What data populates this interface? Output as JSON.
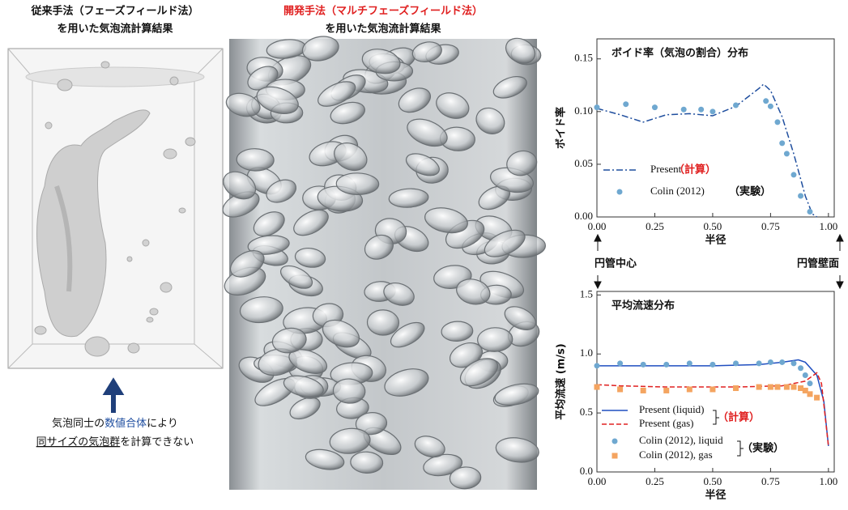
{
  "panels": {
    "left": {
      "title": [
        "従来手法（フェーズフィールド法）",
        "を用いた気泡流計算結果"
      ],
      "caption_line1": [
        "気泡同士の",
        "数値合体",
        "により"
      ],
      "caption_line2": [
        "同サイズの気泡群",
        "を計算できない"
      ]
    },
    "middle": {
      "title": [
        "開発手法（マルチフェーズフィールド法）",
        "を用いた気泡流計算結果"
      ]
    },
    "right": {
      "center_label": "円管中心",
      "wall_label": "円管壁面"
    }
  },
  "chart_data": [
    {
      "type": "line",
      "title": "ボイド率（気泡の割合）分布",
      "xlabel": "半径",
      "ylabel": "ボイド率",
      "xlim": [
        0,
        1.025
      ],
      "ylim": [
        0,
        0.169
      ],
      "xticks": [
        {
          "value": 0,
          "label": "0.00"
        },
        {
          "value": 0.25,
          "label": "0.25"
        },
        {
          "value": 0.5,
          "label": "0.50"
        },
        {
          "value": 0.75,
          "label": "0.75"
        },
        {
          "value": 1,
          "label": "1.00"
        }
      ],
      "yticks": [
        {
          "value": 0,
          "label": "0.00"
        },
        {
          "value": 0.05,
          "label": "0.05"
        },
        {
          "value": 0.1,
          "label": "0.10"
        },
        {
          "value": 0.15,
          "label": "0.15"
        }
      ],
      "series": [
        {
          "name": "Present",
          "color": "#1f4e9e",
          "linestyle": "dashdot",
          "marker": "none",
          "x": [
            0,
            0.1,
            0.2,
            0.3,
            0.4,
            0.5,
            0.6,
            0.7,
            0.72,
            0.75,
            0.8,
            0.85,
            0.9,
            0.93,
            0.95
          ],
          "values": [
            0.103,
            0.097,
            0.09,
            0.097,
            0.098,
            0.096,
            0.105,
            0.122,
            0.126,
            0.12,
            0.095,
            0.06,
            0.02,
            0.003,
            0
          ]
        },
        {
          "name": "Colin (2012)",
          "color": "#6fa8d0",
          "linestyle": "none",
          "marker": "circle",
          "x": [
            0,
            0.125,
            0.25,
            0.375,
            0.45,
            0.5,
            0.6,
            0.73,
            0.75,
            0.78,
            0.8,
            0.82,
            0.85,
            0.88,
            0.92
          ],
          "values": [
            0.104,
            0.107,
            0.104,
            0.102,
            0.102,
            0.1,
            0.106,
            0.11,
            0.105,
            0.09,
            0.07,
            0.06,
            0.04,
            0.02,
            0.005
          ]
        }
      ],
      "annotations": [
        {
          "text": "（計算）",
          "color": "#e02020"
        },
        {
          "text": "（実験）",
          "color": "#111111"
        }
      ]
    },
    {
      "type": "line",
      "title": "平均流速分布",
      "xlabel": "半径",
      "ylabel": "平均流速 (m/s)",
      "xlim": [
        0,
        1.025
      ],
      "ylim": [
        0,
        1.53
      ],
      "xticks": [
        {
          "value": 0,
          "label": "0.00"
        },
        {
          "value": 0.25,
          "label": "0.25"
        },
        {
          "value": 0.5,
          "label": "0.50"
        },
        {
          "value": 0.75,
          "label": "0.75"
        },
        {
          "value": 1,
          "label": "1.00"
        }
      ],
      "yticks": [
        {
          "value": 0,
          "label": "0.0"
        },
        {
          "value": 0.5,
          "label": "0.5"
        },
        {
          "value": 1,
          "label": "1.0"
        },
        {
          "value": 1.5,
          "label": "1.5"
        }
      ],
      "series": [
        {
          "name": "Present (liquid)",
          "color": "#1f4ec0",
          "linestyle": "solid",
          "marker": "none",
          "x": [
            0,
            0.2,
            0.5,
            0.7,
            0.8,
            0.87,
            0.9,
            0.95,
            0.98,
            1.0
          ],
          "values": [
            0.9,
            0.9,
            0.9,
            0.91,
            0.93,
            0.95,
            0.93,
            0.82,
            0.6,
            0.22
          ]
        },
        {
          "name": "Present (gas)",
          "color": "#e02020",
          "linestyle": "dashed",
          "marker": "none",
          "x": [
            0,
            0.1,
            0.3,
            0.6,
            0.8,
            0.9,
            0.95,
            0.97,
            1.0
          ],
          "values": [
            0.74,
            0.73,
            0.72,
            0.72,
            0.73,
            0.77,
            0.84,
            0.75,
            0.22
          ]
        },
        {
          "name": "Colin (2012), liquid",
          "color": "#6fa8d0",
          "linestyle": "none",
          "marker": "circle",
          "x": [
            0,
            0.1,
            0.2,
            0.3,
            0.4,
            0.5,
            0.6,
            0.7,
            0.75,
            0.8,
            0.85,
            0.88,
            0.9,
            0.92
          ],
          "values": [
            0.9,
            0.92,
            0.91,
            0.91,
            0.92,
            0.91,
            0.92,
            0.92,
            0.93,
            0.93,
            0.92,
            0.88,
            0.82,
            0.75
          ]
        },
        {
          "name": "Colin (2012), gas",
          "color": "#f4a460",
          "linestyle": "none",
          "marker": "square",
          "x": [
            0,
            0.1,
            0.2,
            0.3,
            0.4,
            0.5,
            0.6,
            0.7,
            0.75,
            0.78,
            0.82,
            0.85,
            0.88,
            0.9,
            0.92,
            0.95
          ],
          "values": [
            0.72,
            0.7,
            0.69,
            0.69,
            0.7,
            0.7,
            0.71,
            0.72,
            0.72,
            0.72,
            0.72,
            0.72,
            0.71,
            0.69,
            0.66,
            0.63
          ]
        }
      ],
      "annotations": [
        {
          "text": "（計算）",
          "color": "#e02020"
        },
        {
          "text": "（実験）",
          "color": "#111111"
        }
      ]
    }
  ]
}
